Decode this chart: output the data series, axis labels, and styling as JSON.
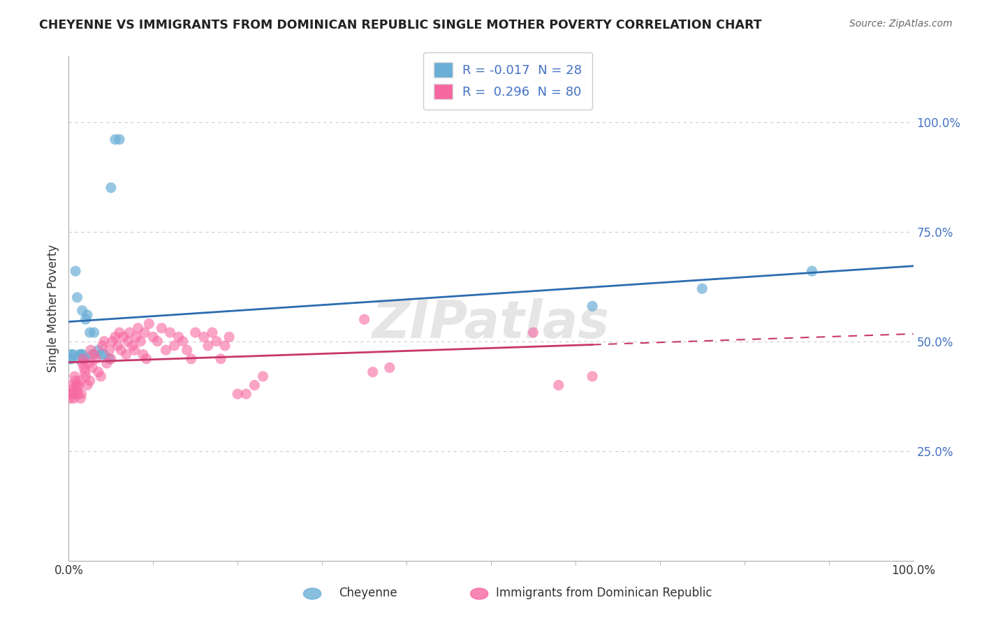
{
  "title": "CHEYENNE VS IMMIGRANTS FROM DOMINICAN REPUBLIC SINGLE MOTHER POVERTY CORRELATION CHART",
  "source": "Source: ZipAtlas.com",
  "ylabel": "Single Mother Poverty",
  "watermark": "ZIPatlas",
  "cheyenne_color": "#6baed6",
  "dr_color": "#f768a1",
  "trend_cheyenne_color": "#2b6cb0",
  "trend_dr_color": "#c7366a",
  "background_color": "#ffffff",
  "grid_color": "#cccccc",
  "cheyenne_x": [
    0.002,
    0.003,
    0.003,
    0.005,
    0.008,
    0.01,
    0.012,
    0.013,
    0.015,
    0.016,
    0.016,
    0.018,
    0.019,
    0.02,
    0.022,
    0.025,
    0.028,
    0.03,
    0.035,
    0.038,
    0.042,
    0.048,
    0.05,
    0.055,
    0.06,
    0.62,
    0.75,
    0.88
  ],
  "cheyenne_y": [
    0.46,
    0.46,
    0.47,
    0.47,
    0.66,
    0.6,
    0.46,
    0.47,
    0.47,
    0.57,
    0.47,
    0.46,
    0.46,
    0.55,
    0.56,
    0.52,
    0.47,
    0.52,
    0.48,
    0.47,
    0.47,
    0.46,
    0.85,
    0.96,
    0.96,
    0.58,
    0.62,
    0.66
  ],
  "dr_x": [
    0.001,
    0.002,
    0.003,
    0.004,
    0.005,
    0.006,
    0.007,
    0.008,
    0.009,
    0.01,
    0.011,
    0.012,
    0.013,
    0.014,
    0.015,
    0.016,
    0.017,
    0.018,
    0.019,
    0.02,
    0.022,
    0.024,
    0.025,
    0.026,
    0.028,
    0.03,
    0.032,
    0.035,
    0.038,
    0.04,
    0.042,
    0.045,
    0.048,
    0.05,
    0.052,
    0.055,
    0.058,
    0.06,
    0.062,
    0.065,
    0.068,
    0.07,
    0.072,
    0.075,
    0.078,
    0.08,
    0.082,
    0.085,
    0.088,
    0.09,
    0.092,
    0.095,
    0.1,
    0.105,
    0.11,
    0.115,
    0.12,
    0.125,
    0.13,
    0.135,
    0.14,
    0.145,
    0.15,
    0.16,
    0.165,
    0.17,
    0.175,
    0.18,
    0.185,
    0.19,
    0.2,
    0.21,
    0.22,
    0.23,
    0.35,
    0.36,
    0.38,
    0.55,
    0.58,
    0.62
  ],
  "dr_y": [
    0.38,
    0.37,
    0.4,
    0.39,
    0.38,
    0.37,
    0.42,
    0.41,
    0.4,
    0.39,
    0.38,
    0.4,
    0.41,
    0.37,
    0.38,
    0.45,
    0.46,
    0.44,
    0.43,
    0.42,
    0.4,
    0.45,
    0.41,
    0.48,
    0.44,
    0.47,
    0.46,
    0.43,
    0.42,
    0.49,
    0.5,
    0.45,
    0.48,
    0.46,
    0.5,
    0.51,
    0.49,
    0.52,
    0.48,
    0.51,
    0.47,
    0.5,
    0.52,
    0.49,
    0.48,
    0.51,
    0.53,
    0.5,
    0.47,
    0.52,
    0.46,
    0.54,
    0.51,
    0.5,
    0.53,
    0.48,
    0.52,
    0.49,
    0.51,
    0.5,
    0.48,
    0.46,
    0.52,
    0.51,
    0.49,
    0.52,
    0.5,
    0.46,
    0.49,
    0.51,
    0.38,
    0.38,
    0.4,
    0.42,
    0.55,
    0.43,
    0.44,
    0.52,
    0.4,
    0.42
  ],
  "xlim": [
    0.0,
    1.0
  ],
  "ylim": [
    0.0,
    1.15
  ],
  "yticks": [
    0.25,
    0.5,
    0.75,
    1.0
  ],
  "ytick_labels": [
    "25.0%",
    "50.0%",
    "75.0%",
    "100.0%"
  ],
  "xticks": [
    0.0,
    1.0
  ],
  "xtick_labels": [
    "0.0%",
    "100.0%"
  ],
  "legend_label_ch": "R = -0.017  N = 28",
  "legend_label_dr": "R =  0.296  N = 80",
  "bottom_label_ch": "Cheyenne",
  "bottom_label_dr": "Immigrants from Dominican Republic"
}
